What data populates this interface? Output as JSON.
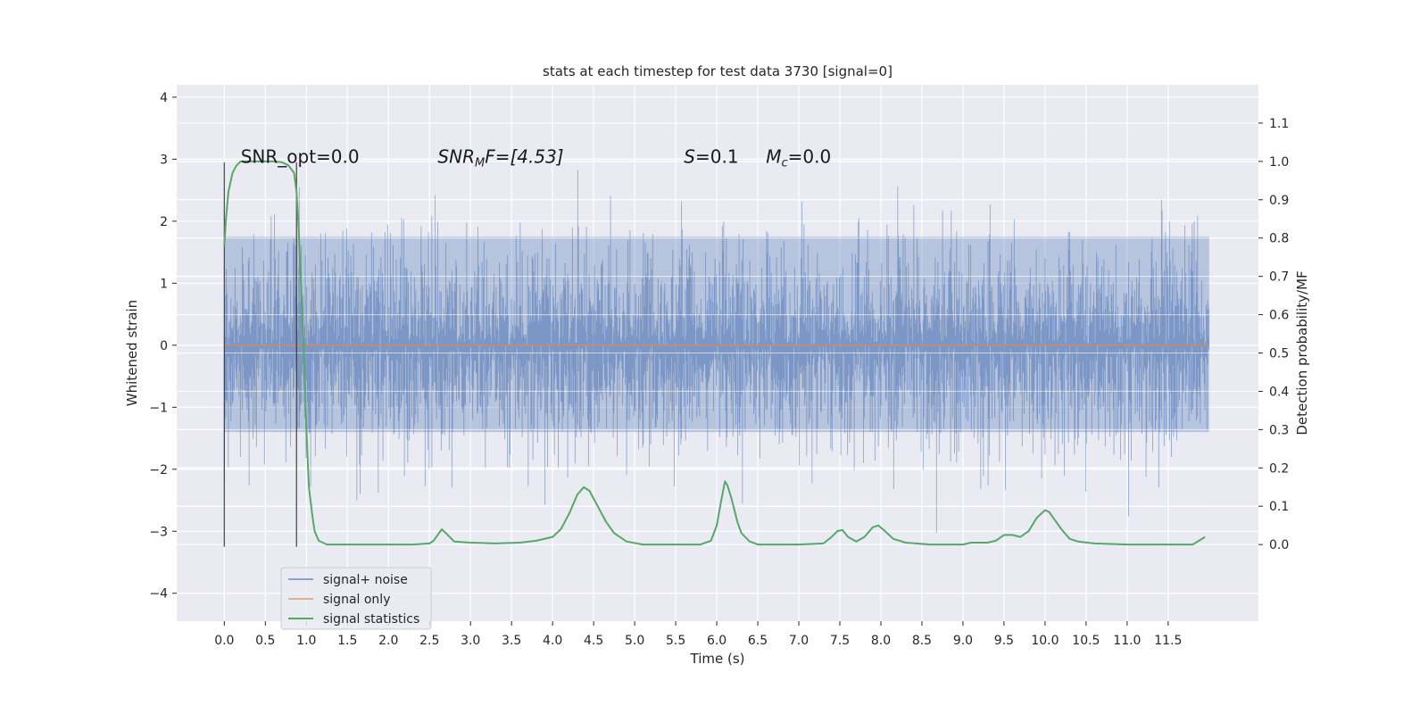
{
  "chart_data": {
    "type": "line",
    "title": "stats at each timestep for test data 3730 [signal=0]",
    "xlabel": "Time (s)",
    "ylabel": "Whitened strain",
    "y2label": "Detection probability/MF",
    "xlim": [
      -0.58,
      12.6
    ],
    "ylim": [
      -4.45,
      4.2
    ],
    "y2lim": [
      -0.2,
      1.2
    ],
    "x_ticks": [
      0.0,
      0.5,
      1.0,
      1.5,
      2.0,
      2.5,
      3.0,
      3.5,
      4.0,
      4.5,
      5.0,
      5.5,
      6.0,
      6.5,
      7.0,
      7.5,
      8.0,
      8.5,
      9.0,
      9.5,
      10.0,
      10.5,
      11.0,
      11.5
    ],
    "x_tick_labels": [
      "0.0",
      "0.5",
      "1.0",
      "1.5",
      "2.0",
      "2.5",
      "3.0",
      "3.5",
      "4.0",
      "4.5",
      "5.0",
      "5.5",
      "6.0",
      "6.5",
      "7.0",
      "7.5",
      "8.0",
      "8.5",
      "9.0",
      "9.5",
      "10.0",
      "10.5",
      "11.0",
      "11.5"
    ],
    "y_ticks": [
      -4,
      -3,
      -2,
      -1,
      0,
      1,
      2,
      3,
      4
    ],
    "y_tick_labels": [
      "−4",
      "−3",
      "−2",
      "−1",
      "0",
      "1",
      "2",
      "3",
      "4"
    ],
    "y2_ticks": [
      0.0,
      0.1,
      0.2,
      0.3,
      0.4,
      0.5,
      0.6,
      0.7,
      0.8,
      0.9,
      1.0,
      1.1
    ],
    "y2_tick_labels": [
      "0.0",
      "0.1",
      "0.2",
      "0.3",
      "0.4",
      "0.5",
      "0.6",
      "0.7",
      "0.8",
      "0.9",
      "1.0",
      "1.1"
    ],
    "grid": true,
    "legend_position": "lower-left",
    "series": [
      {
        "name": "signal+ noise",
        "color": "#4c72b0",
        "axis": "left",
        "x_range": [
          0.0,
          12.0
        ],
        "core_band": [
          -1.4,
          1.75
        ],
        "typical_extremes": [
          -2.6,
          2.9
        ]
      },
      {
        "name": "signal only",
        "color": "#dd8452",
        "axis": "left",
        "x": [
          0.0,
          12.0
        ],
        "y": [
          0.0,
          0.0
        ]
      },
      {
        "name": "signal statistics",
        "color": "#55a868",
        "axis": "right",
        "x": [
          0.0,
          0.02,
          0.05,
          0.1,
          0.15,
          0.2,
          0.3,
          0.5,
          0.6,
          0.7,
          0.78,
          0.85,
          0.88,
          0.9,
          0.93,
          0.97,
          1.0,
          1.03,
          1.07,
          1.1,
          1.15,
          1.25,
          1.5,
          2.0,
          2.3,
          2.5,
          2.55,
          2.6,
          2.65,
          2.7,
          2.8,
          3.0,
          3.3,
          3.6,
          3.8,
          4.0,
          4.1,
          4.2,
          4.3,
          4.38,
          4.45,
          4.55,
          4.65,
          4.75,
          4.9,
          5.1,
          5.5,
          5.8,
          5.93,
          6.0,
          6.05,
          6.1,
          6.13,
          6.18,
          6.25,
          6.3,
          6.4,
          6.5,
          6.7,
          7.0,
          7.3,
          7.4,
          7.47,
          7.53,
          7.6,
          7.7,
          7.8,
          7.9,
          7.97,
          8.05,
          8.15,
          8.3,
          8.6,
          9.0,
          9.1,
          9.3,
          9.4,
          9.5,
          9.6,
          9.7,
          9.8,
          9.9,
          10.0,
          10.05,
          10.1,
          10.2,
          10.3,
          10.4,
          10.6,
          11.0,
          11.5,
          11.8,
          11.95
        ],
        "y": [
          0.78,
          0.85,
          0.92,
          0.97,
          0.99,
          1.0,
          1.0,
          1.0,
          1.0,
          0.998,
          0.99,
          0.97,
          0.92,
          0.85,
          0.7,
          0.5,
          0.3,
          0.15,
          0.08,
          0.035,
          0.01,
          0.0,
          0.0,
          0.0,
          0.0,
          0.003,
          0.01,
          0.025,
          0.04,
          0.03,
          0.008,
          0.005,
          0.003,
          0.005,
          0.01,
          0.02,
          0.04,
          0.08,
          0.13,
          0.15,
          0.14,
          0.1,
          0.06,
          0.03,
          0.008,
          0.0,
          0.0,
          0.0,
          0.01,
          0.05,
          0.11,
          0.165,
          0.155,
          0.12,
          0.06,
          0.03,
          0.008,
          0.0,
          0.0,
          0.0,
          0.003,
          0.02,
          0.035,
          0.038,
          0.02,
          0.008,
          0.02,
          0.045,
          0.05,
          0.035,
          0.015,
          0.005,
          0.0,
          0.0,
          0.005,
          0.005,
          0.01,
          0.025,
          0.025,
          0.02,
          0.035,
          0.07,
          0.09,
          0.085,
          0.07,
          0.04,
          0.015,
          0.008,
          0.003,
          0.0,
          0.0,
          0.0,
          0.02
        ]
      }
    ],
    "markers": [
      {
        "x": 0.0,
        "y_range": [
          -3.25,
          2.95
        ]
      },
      {
        "x": 0.88,
        "y_range": [
          -3.25,
          2.95
        ]
      }
    ],
    "annotations": [
      {
        "id": "snr-opt",
        "text": "SNR_opt=0.0",
        "x": 0.2,
        "y": 3.0
      },
      {
        "id": "snr-mf",
        "main": "SNR",
        "sub": "M",
        "rest": "F=[4.53]",
        "x": 2.6,
        "y": 3.0
      },
      {
        "id": "s-val",
        "main": "S",
        "rest": "=0.1",
        "x": 5.6,
        "y": 3.0
      },
      {
        "id": "mc-val",
        "main": "M",
        "sub": "c",
        "rest": "=0.0",
        "x": 6.6,
        "y": 3.0
      }
    ]
  }
}
